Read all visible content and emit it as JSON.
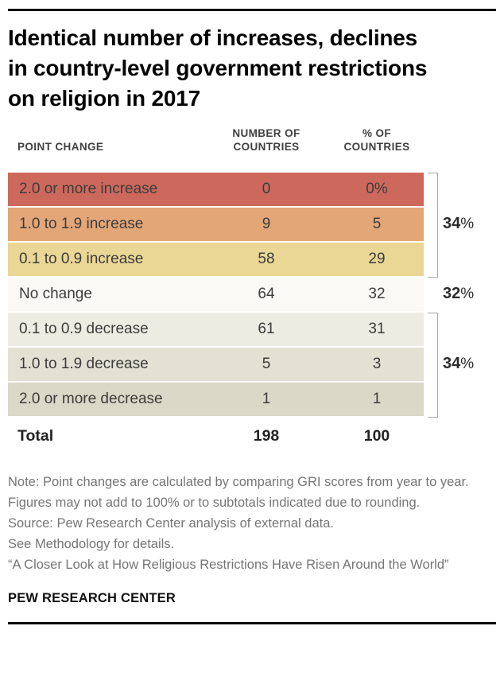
{
  "title_lines": [
    "Identical number of increases, declines",
    "in country-level government restrictions",
    "on religion in 2017"
  ],
  "table": {
    "headers": {
      "col1": "POINT CHANGE",
      "col2": "NUMBER OF COUNTRIES",
      "col3": "% OF COUNTRIES"
    },
    "rows": [
      {
        "label": "2.0 or more increase",
        "number": "0",
        "percent": "0%",
        "color": "#cd695c"
      },
      {
        "label": "1.0 to 1.9 increase",
        "number": "9",
        "percent": "5",
        "color": "#e3a677"
      },
      {
        "label": "0.1 to 0.9 increase",
        "number": "58",
        "percent": "29",
        "color": "#ead795"
      },
      {
        "label": "No change",
        "number": "64",
        "percent": "32",
        "color": "#faf9f5"
      },
      {
        "label": "0.1 to 0.9 decrease",
        "number": "61",
        "percent": "31",
        "color": "#edece2"
      },
      {
        "label": "1.0 to 1.9 decrease",
        "number": "5",
        "percent": "3",
        "color": "#e2e1d4"
      },
      {
        "label": "2.0 or more decrease",
        "number": "1",
        "percent": "1",
        "color": "#dad8c6"
      }
    ],
    "total": {
      "label": "Total",
      "number": "198",
      "percent": "100"
    }
  },
  "annotations": {
    "increase_group": {
      "number": "34",
      "sign": "%"
    },
    "no_change": {
      "number": "32",
      "sign": "%"
    },
    "decrease_group": {
      "number": "34",
      "sign": "%"
    }
  },
  "bracket_color": "#a6a6a6",
  "notes": {
    "note": "Note: Point changes are calculated by comparing GRI scores from year to year. Figures may not add to 100% or to subtotals indicated due to rounding.",
    "source": "Source: Pew Research Center analysis of external data.",
    "methodology": "See Methodology for details.",
    "report": "“A Closer Look at How Religious Restrictions Have Risen Around the World”"
  },
  "footer": "PEW RESEARCH CENTER",
  "chart_data": {
    "type": "table",
    "title": "Identical number of increases, declines in country-level government restrictions on religion in 2017",
    "columns": [
      "Point change",
      "Number of countries",
      "% of countries"
    ],
    "rows": [
      [
        "2.0 or more increase",
        0,
        "0%"
      ],
      [
        "1.0 to 1.9 increase",
        9,
        5
      ],
      [
        "0.1 to 0.9 increase",
        58,
        29
      ],
      [
        "No change",
        64,
        32
      ],
      [
        "0.1 to 0.9 decrease",
        61,
        31
      ],
      [
        "1.0 to 1.9 decrease",
        5,
        3
      ],
      [
        "2.0 or more decrease",
        1,
        1
      ],
      [
        "Total",
        198,
        100
      ]
    ],
    "row_colors": [
      "#cd695c",
      "#e3a677",
      "#ead795",
      "#faf9f5",
      "#edece2",
      "#e2e1d4",
      "#dad8c6",
      "#ffffff"
    ],
    "group_annotations": [
      {
        "rows": [
          0,
          1,
          2
        ],
        "label": "34%"
      },
      {
        "rows": [
          3
        ],
        "label": "32%"
      },
      {
        "rows": [
          4,
          5,
          6
        ],
        "label": "34%"
      }
    ],
    "legend_position": "none",
    "grid": false
  }
}
